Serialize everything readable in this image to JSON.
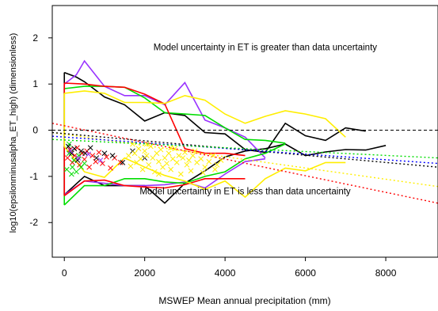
{
  "chart_data": {
    "type": "line",
    "xlabel": "MSWEP Mean annual precipitation (mm)",
    "ylabel": "log10(epsilonminusalpha_ET_high) (dimensionless)",
    "xlim": [
      -300,
      9300
    ],
    "ylim": [
      -2.75,
      2.7
    ],
    "x_ticks": [
      0,
      2000,
      4000,
      6000,
      8000
    ],
    "y_ticks": [
      -2,
      -1,
      0,
      1,
      2
    ],
    "annotations": [
      {
        "text": "Model uncertainty in ET is greater than data uncertainty",
        "x": 5000,
        "y": 1.8
      },
      {
        "text": "Model uncertainty in ET is less than data uncertainty",
        "x": 4500,
        "y": -1.32
      }
    ],
    "reference_line": {
      "y": 0,
      "style": "dashed",
      "color": "#000000"
    },
    "series": [
      {
        "color": "#000000",
        "upper": [
          [
            0,
            1.25
          ],
          [
            300,
            1.15
          ],
          [
            500,
            1.05
          ],
          [
            1000,
            0.72
          ],
          [
            1500,
            0.55
          ],
          [
            2000,
            0.2
          ],
          [
            2500,
            0.38
          ],
          [
            3000,
            0.32
          ],
          [
            3500,
            -0.05
          ],
          [
            4000,
            -0.08
          ],
          [
            4500,
            -0.42
          ],
          [
            5000,
            -0.48
          ],
          [
            5500,
            0.15
          ],
          [
            6000,
            -0.12
          ],
          [
            6500,
            -0.22
          ],
          [
            7000,
            0.05
          ],
          [
            7500,
            -0.02
          ]
        ],
        "lower": [
          [
            0,
            -1.4
          ],
          [
            500,
            -1.0
          ],
          [
            1000,
            -1.2
          ],
          [
            1500,
            -1.2
          ],
          [
            2000,
            -1.2
          ],
          [
            2500,
            -1.58
          ],
          [
            3000,
            -1.15
          ],
          [
            3500,
            -0.88
          ],
          [
            4000,
            -0.58
          ],
          [
            4500,
            -0.45
          ],
          [
            5000,
            -0.4
          ],
          [
            5500,
            -0.3
          ],
          [
            6000,
            -0.55
          ],
          [
            6500,
            -0.47
          ],
          [
            7000,
            -0.42
          ],
          [
            7500,
            -0.43
          ],
          [
            8000,
            -0.33
          ]
        ]
      },
      {
        "color": "#9933ff",
        "upper": [
          [
            0,
            1.0
          ],
          [
            300,
            1.2
          ],
          [
            500,
            1.5
          ],
          [
            1000,
            0.95
          ],
          [
            1500,
            0.75
          ],
          [
            2000,
            0.75
          ],
          [
            2500,
            0.55
          ],
          [
            3000,
            1.03
          ],
          [
            3500,
            0.22
          ],
          [
            4000,
            0.05
          ],
          [
            4500,
            -0.15
          ],
          [
            5000,
            -0.6
          ]
        ],
        "lower": [
          [
            0,
            -1.4
          ],
          [
            500,
            -1.1
          ],
          [
            1000,
            -1.15
          ],
          [
            1500,
            -1.2
          ],
          [
            2000,
            -1.2
          ],
          [
            2500,
            -1.18
          ],
          [
            3000,
            -1.12
          ],
          [
            3500,
            -1.25
          ],
          [
            4000,
            -0.95
          ],
          [
            4500,
            -0.68
          ],
          [
            5000,
            -0.62
          ]
        ]
      },
      {
        "color": "#00dd00",
        "upper": [
          [
            0,
            0.9
          ],
          [
            500,
            0.95
          ],
          [
            1000,
            0.95
          ],
          [
            1500,
            0.93
          ],
          [
            2000,
            0.7
          ],
          [
            2500,
            0.38
          ],
          [
            3000,
            0.35
          ],
          [
            3500,
            0.32
          ],
          [
            4000,
            0.05
          ],
          [
            4500,
            -0.2
          ],
          [
            5000,
            -0.22
          ],
          [
            5500,
            -0.28
          ]
        ],
        "lower": [
          [
            0,
            -1.62
          ],
          [
            500,
            -1.2
          ],
          [
            1000,
            -1.2
          ],
          [
            1500,
            -1.05
          ],
          [
            2000,
            -1.05
          ],
          [
            2500,
            -1.12
          ],
          [
            3000,
            -1.15
          ],
          [
            3500,
            -1.0
          ],
          [
            4000,
            -0.9
          ],
          [
            4500,
            -0.62
          ],
          [
            5000,
            -0.5
          ],
          [
            5500,
            -0.3
          ]
        ]
      },
      {
        "color": "#ff0000",
        "upper": [
          [
            0,
            1.02
          ],
          [
            500,
            1.0
          ],
          [
            1000,
            0.95
          ],
          [
            1500,
            0.93
          ],
          [
            2000,
            0.78
          ],
          [
            2500,
            0.57
          ],
          [
            3000,
            -0.4
          ],
          [
            3500,
            -0.5
          ],
          [
            4000,
            -0.5
          ],
          [
            4500,
            -0.55
          ]
        ],
        "lower": [
          [
            0,
            -1.42
          ],
          [
            500,
            -1.1
          ],
          [
            1000,
            -1.08
          ],
          [
            1500,
            -1.2
          ],
          [
            2000,
            -1.23
          ],
          [
            2500,
            -1.25
          ],
          [
            3000,
            -1.18
          ],
          [
            3500,
            -1.05
          ],
          [
            4000,
            -1.05
          ],
          [
            4500,
            -1.05
          ]
        ]
      },
      {
        "color": "#ffee00",
        "upper": [
          [
            0,
            0.8
          ],
          [
            500,
            0.85
          ],
          [
            1000,
            0.8
          ],
          [
            1500,
            0.6
          ],
          [
            2000,
            0.6
          ],
          [
            2500,
            0.58
          ],
          [
            3000,
            0.75
          ],
          [
            3500,
            0.65
          ],
          [
            4000,
            0.35
          ],
          [
            4500,
            0.15
          ],
          [
            5000,
            0.3
          ],
          [
            5500,
            0.42
          ],
          [
            6000,
            0.35
          ],
          [
            6500,
            0.25
          ],
          [
            7000,
            -0.15
          ]
        ],
        "lower": [
          [
            0,
            -0.35
          ],
          [
            500,
            -0.9
          ],
          [
            1000,
            -1.02
          ],
          [
            1500,
            -0.6
          ],
          [
            2000,
            -0.8
          ],
          [
            2500,
            -0.98
          ],
          [
            3000,
            -1.1
          ],
          [
            3500,
            -1.28
          ],
          [
            4000,
            -1.1
          ],
          [
            4500,
            -1.45
          ],
          [
            5000,
            -1.05
          ],
          [
            5500,
            -0.82
          ],
          [
            6000,
            -0.88
          ],
          [
            6500,
            -0.7
          ],
          [
            7000,
            -0.7
          ]
        ]
      }
    ],
    "trend_lines": [
      {
        "color": "#ff0000",
        "x": [
          -300,
          9300
        ],
        "y": [
          0.15,
          -1.58
        ]
      },
      {
        "color": "#ffee00",
        "x": [
          -300,
          9300
        ],
        "y": [
          -0.05,
          -1.22
        ]
      },
      {
        "color": "#000000",
        "x": [
          -300,
          9300
        ],
        "y": [
          -0.05,
          -0.8
        ]
      },
      {
        "color": "#0000ff",
        "x": [
          -300,
          9300
        ],
        "y": [
          -0.13,
          -0.72
        ]
      },
      {
        "color": "#00dd00",
        "x": [
          -300,
          9300
        ],
        "y": [
          -0.2,
          -0.6
        ]
      }
    ],
    "scatter": [
      {
        "color": "#ff0000",
        "points": [
          [
            80,
            -0.6
          ],
          [
            140,
            -0.42
          ],
          [
            200,
            -0.7
          ],
          [
            260,
            -0.55
          ],
          [
            320,
            -0.38
          ],
          [
            380,
            -0.75
          ],
          [
            440,
            -0.5
          ],
          [
            500,
            -0.63
          ],
          [
            560,
            -0.45
          ],
          [
            620,
            -0.8
          ],
          [
            700,
            -0.55
          ],
          [
            780,
            -0.68
          ],
          [
            860,
            -0.48
          ],
          [
            950,
            -0.72
          ],
          [
            1050,
            -0.58
          ],
          [
            1150,
            -0.82
          ],
          [
            1250,
            -0.6
          ],
          [
            1400,
            -0.7
          ]
        ]
      },
      {
        "color": "#00dd00",
        "points": [
          [
            60,
            -0.85
          ],
          [
            120,
            -0.5
          ],
          [
            180,
            -0.95
          ],
          [
            240,
            -0.65
          ],
          [
            300,
            -0.9
          ],
          [
            360,
            -0.55
          ],
          [
            420,
            -0.8
          ],
          [
            500,
            -0.72
          ],
          [
            120,
            -0.3
          ],
          [
            200,
            -0.8
          ]
        ]
      },
      {
        "color": "#000000",
        "points": [
          [
            100,
            -0.35
          ],
          [
            180,
            -0.5
          ],
          [
            250,
            -0.4
          ],
          [
            330,
            -0.65
          ],
          [
            420,
            -0.45
          ],
          [
            520,
            -0.5
          ],
          [
            650,
            -0.38
          ],
          [
            800,
            -0.6
          ],
          [
            1000,
            -0.5
          ],
          [
            1200,
            -0.55
          ],
          [
            1450,
            -0.7
          ],
          [
            1700,
            -0.45
          ],
          [
            2000,
            -0.6
          ]
        ]
      },
      {
        "color": "#9933ff",
        "points": [
          [
            150,
            -0.45
          ],
          [
            350,
            -0.6
          ],
          [
            600,
            -0.52
          ],
          [
            900,
            -0.65
          ]
        ]
      },
      {
        "color": "#ffee00",
        "points": [
          [
            1700,
            -0.3
          ],
          [
            1750,
            -0.5
          ],
          [
            1800,
            -0.7
          ],
          [
            1850,
            -0.4
          ],
          [
            1900,
            -0.62
          ],
          [
            1950,
            -0.85
          ],
          [
            2000,
            -0.45
          ],
          [
            2050,
            -0.55
          ],
          [
            2100,
            -0.75
          ],
          [
            2150,
            -0.35
          ],
          [
            2200,
            -0.6
          ],
          [
            2250,
            -0.9
          ],
          [
            2300,
            -0.5
          ],
          [
            2350,
            -0.68
          ],
          [
            2400,
            -0.42
          ],
          [
            2450,
            -0.8
          ],
          [
            2500,
            -0.6
          ],
          [
            2550,
            -0.72
          ],
          [
            2600,
            -0.5
          ],
          [
            2650,
            -0.85
          ],
          [
            2700,
            -0.62
          ],
          [
            2750,
            -0.4
          ],
          [
            2800,
            -0.7
          ],
          [
            2850,
            -0.55
          ],
          [
            2900,
            -0.95
          ],
          [
            2950,
            -0.6
          ],
          [
            3000,
            -0.48
          ],
          [
            3050,
            -0.75
          ],
          [
            3100,
            -0.65
          ],
          [
            3150,
            -0.88
          ],
          [
            3200,
            -0.55
          ],
          [
            3300,
            -0.7
          ],
          [
            3400,
            -0.62
          ],
          [
            3500,
            -0.8
          ],
          [
            3600,
            -0.68
          ],
          [
            3700,
            -0.55
          ],
          [
            3800,
            -0.75
          ],
          [
            1600,
            -0.55
          ],
          [
            1650,
            -0.78
          ],
          [
            2050,
            -0.3
          ],
          [
            2350,
            -0.95
          ],
          [
            2650,
            -0.38
          ],
          [
            3250,
            -0.45
          ],
          [
            3450,
            -0.92
          ],
          [
            3750,
            -0.85
          ],
          [
            3900,
            -0.65
          ]
        ]
      }
    ]
  }
}
